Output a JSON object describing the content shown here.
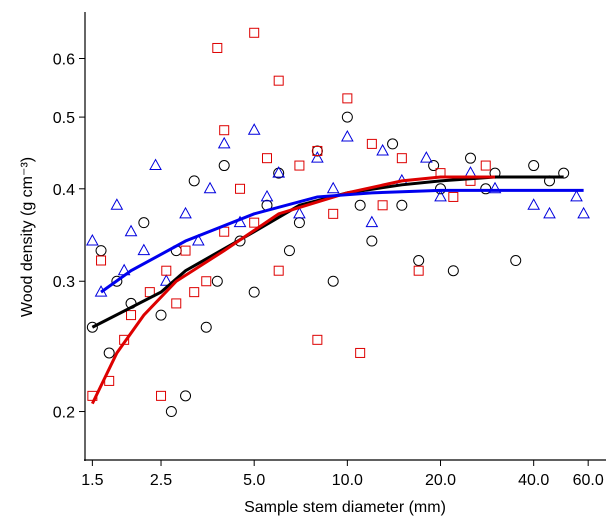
{
  "chart_data": {
    "type": "scatter",
    "x_label": "Sample stem diameter (mm)",
    "y_label": "Wood density (g cm⁻³)",
    "log_x": true,
    "log_y": true,
    "xlim": [
      1.42,
      68
    ],
    "ylim": [
      0.172,
      0.687
    ],
    "xticks": [
      1.5,
      2.5,
      {
        "value": 5,
        "label": "5.0"
      },
      {
        "value": 10,
        "label": "10.0"
      },
      {
        "value": 20,
        "label": "20.0"
      },
      {
        "value": 40,
        "label": "40.0"
      },
      {
        "value": 60,
        "label": "60.0"
      }
    ],
    "yticks": [
      0.2,
      0.3,
      0.4,
      0.5,
      0.6
    ],
    "series": [
      {
        "color": "#000000",
        "marker": "circle",
        "x": [
          1.5,
          1.6,
          1.7,
          1.8,
          2.0,
          2.2,
          2.5,
          2.7,
          2.8,
          3.0,
          3.2,
          3.5,
          3.8,
          4.0,
          4.5,
          5.0,
          5.5,
          6,
          6.5,
          7,
          8,
          9,
          10,
          11,
          12,
          14,
          15,
          17,
          19,
          20,
          22,
          25,
          28,
          30,
          35,
          40,
          45,
          50
        ],
        "values": [
          0.26,
          0.33,
          0.24,
          0.3,
          0.28,
          0.36,
          0.27,
          0.2,
          0.33,
          0.21,
          0.41,
          0.26,
          0.3,
          0.43,
          0.34,
          0.29,
          0.38,
          0.42,
          0.33,
          0.36,
          0.45,
          0.3,
          0.5,
          0.38,
          0.34,
          0.46,
          0.38,
          0.32,
          0.43,
          0.4,
          0.31,
          0.44,
          0.4,
          0.42,
          0.32,
          0.43,
          0.41,
          0.42
        ]
      },
      {
        "color": "#0000dd",
        "marker": "triangle",
        "x": [
          1.5,
          1.6,
          1.8,
          1.9,
          2.0,
          2.2,
          2.4,
          2.6,
          3.0,
          3.3,
          3.6,
          4.0,
          4.5,
          5.0,
          5.5,
          6,
          7,
          8,
          9,
          10,
          12,
          13,
          15,
          18,
          20,
          25,
          30,
          40,
          45,
          55,
          58
        ],
        "values": [
          0.34,
          0.29,
          0.38,
          0.31,
          0.35,
          0.33,
          0.43,
          0.3,
          0.37,
          0.34,
          0.4,
          0.46,
          0.36,
          0.48,
          0.39,
          0.42,
          0.37,
          0.44,
          0.4,
          0.47,
          0.36,
          0.45,
          0.41,
          0.44,
          0.39,
          0.42,
          0.4,
          0.38,
          0.37,
          0.39,
          0.37
        ]
      },
      {
        "color": "#dd0000",
        "marker": "square",
        "x": [
          1.5,
          1.6,
          1.7,
          1.9,
          2.0,
          2.3,
          2.5,
          2.6,
          2.8,
          3.0,
          3.2,
          3.5,
          3.8,
          4.0,
          4.0,
          4.5,
          5.0,
          5.0,
          5.5,
          6,
          6,
          7,
          8,
          8,
          9,
          10,
          11,
          12,
          13,
          15,
          17,
          20,
          22,
          25,
          28
        ],
        "values": [
          0.21,
          0.32,
          0.22,
          0.25,
          0.27,
          0.29,
          0.21,
          0.31,
          0.28,
          0.33,
          0.29,
          0.3,
          0.62,
          0.48,
          0.35,
          0.4,
          0.65,
          0.36,
          0.44,
          0.56,
          0.31,
          0.43,
          0.25,
          0.45,
          0.37,
          0.53,
          0.24,
          0.46,
          0.38,
          0.44,
          0.31,
          0.42,
          0.39,
          0.41,
          0.43
        ]
      }
    ],
    "lines": [
      {
        "color": "#000000",
        "x": [
          1.5,
          2.5,
          3,
          5,
          7,
          10,
          15,
          20,
          30,
          50
        ],
        "values": [
          0.26,
          0.29,
          0.31,
          0.35,
          0.38,
          0.395,
          0.405,
          0.41,
          0.415,
          0.415
        ]
      },
      {
        "color": "#dd0000",
        "x": [
          1.5,
          1.8,
          2.2,
          2.8,
          4,
          6,
          10,
          15,
          20,
          30
        ],
        "values": [
          0.205,
          0.24,
          0.27,
          0.3,
          0.33,
          0.37,
          0.395,
          0.41,
          0.415,
          0.415
        ]
      },
      {
        "color": "#0000ee",
        "x": [
          1.6,
          2,
          3,
          5,
          8,
          12,
          20,
          58
        ],
        "values": [
          0.29,
          0.31,
          0.34,
          0.37,
          0.39,
          0.395,
          0.398,
          0.398
        ]
      }
    ]
  }
}
